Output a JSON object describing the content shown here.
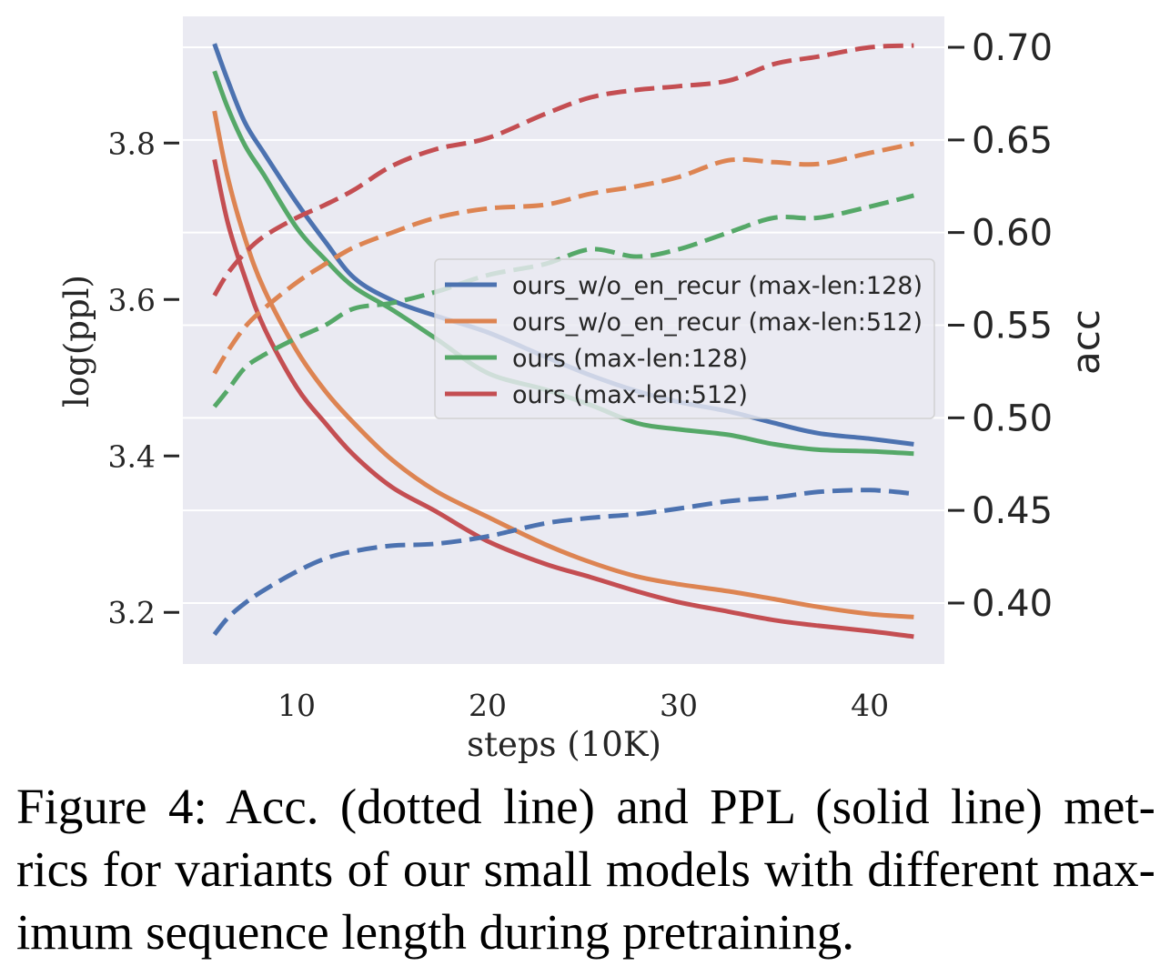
{
  "colors": {
    "plot_background": "#EAEAF2",
    "grid": "#FFFFFF",
    "axis_text": "#262626",
    "caption_text": "#000000"
  },
  "chart_data": {
    "type": "line",
    "title": "",
    "xlabel": "steps (10K)",
    "ylabel_left": "log(ppl)",
    "ylabel_right": "acc",
    "xlim": [
      4.05,
      43.9
    ],
    "ylim_left": [
      3.134,
      3.962
    ],
    "ylim_right": [
      0.3671,
      0.7167
    ],
    "xticks": [
      10,
      20,
      30,
      40
    ],
    "xtick_labels": [
      "10",
      "20",
      "30",
      "40"
    ],
    "yticks_left": [
      3.2,
      3.4,
      3.6,
      3.8
    ],
    "ytick_labels_left": [
      "3.2",
      "3.4",
      "3.6",
      "3.8"
    ],
    "yticks_right": [
      0.4,
      0.45,
      0.5,
      0.55,
      0.6,
      0.65,
      0.7
    ],
    "ytick_labels_right": [
      "0.40",
      "0.45",
      "0.50",
      "0.55",
      "0.60",
      "0.65",
      "0.70"
    ],
    "grid": true,
    "legend_loc": "center right",
    "x": [
      5.7,
      6.4,
      7.3,
      8.3,
      10,
      11.5,
      13,
      15,
      17.3,
      20,
      23,
      25.4,
      27.8,
      30,
      32.6,
      35,
      37.3,
      40,
      42.3
    ],
    "series": [
      {
        "name": "ours_w/o_en_recur (max-len:128)",
        "color": "#4C72B0",
        "log_ppl": [
          3.927,
          3.88,
          3.826,
          3.787,
          3.724,
          3.674,
          3.628,
          3.599,
          3.579,
          3.558,
          3.527,
          3.503,
          3.483,
          3.469,
          3.457,
          3.442,
          3.429,
          3.422,
          3.415
        ],
        "acc": [
          0.383,
          0.392,
          0.4,
          0.407,
          0.417,
          0.424,
          0.428,
          0.431,
          0.432,
          0.436,
          0.443,
          0.446,
          0.448,
          0.451,
          0.455,
          0.457,
          0.46,
          0.461,
          0.459
        ]
      },
      {
        "name": "ours_w/o_en_recur (max-len:512)",
        "color": "#DD8452",
        "log_ppl": [
          3.841,
          3.756,
          3.678,
          3.613,
          3.535,
          3.483,
          3.442,
          3.395,
          3.355,
          3.322,
          3.287,
          3.264,
          3.246,
          3.236,
          3.227,
          3.217,
          3.207,
          3.198,
          3.194
        ],
        "acc": [
          0.524,
          0.536,
          0.549,
          0.559,
          0.573,
          0.583,
          0.592,
          0.6,
          0.608,
          0.613,
          0.615,
          0.621,
          0.625,
          0.63,
          0.639,
          0.638,
          0.637,
          0.643,
          0.648
        ]
      },
      {
        "name": "ours (max-len:128)",
        "color": "#55A868",
        "log_ppl": [
          3.892,
          3.845,
          3.797,
          3.759,
          3.692,
          3.651,
          3.616,
          3.587,
          3.55,
          3.506,
          3.485,
          3.465,
          3.442,
          3.434,
          3.427,
          3.415,
          3.408,
          3.406,
          3.403
        ],
        "acc": [
          0.506,
          0.515,
          0.527,
          0.534,
          0.543,
          0.55,
          0.559,
          0.562,
          0.568,
          0.577,
          0.583,
          0.591,
          0.587,
          0.591,
          0.6,
          0.608,
          0.608,
          0.614,
          0.62
        ]
      },
      {
        "name": "ours (max-len:512)",
        "color": "#C44E52",
        "log_ppl": [
          3.779,
          3.698,
          3.628,
          3.564,
          3.488,
          3.442,
          3.401,
          3.36,
          3.329,
          3.291,
          3.262,
          3.245,
          3.227,
          3.213,
          3.201,
          3.19,
          3.183,
          3.176,
          3.169
        ],
        "acc": [
          0.566,
          0.578,
          0.589,
          0.598,
          0.608,
          0.615,
          0.623,
          0.636,
          0.645,
          0.651,
          0.664,
          0.673,
          0.677,
          0.679,
          0.682,
          0.691,
          0.695,
          0.7,
          0.701
        ]
      }
    ]
  },
  "caption": {
    "lines": [
      "Figure 4: Acc. (dotted line) and PPL (solid line) met-",
      "rics for variants of our small models with different max-",
      "imum sequence length during pretraining."
    ]
  }
}
